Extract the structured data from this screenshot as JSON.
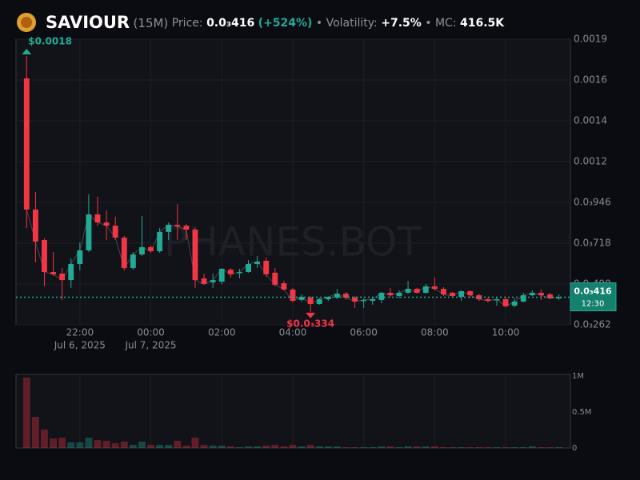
{
  "header": {
    "name": "SAVIOUR",
    "interval": "(15M)",
    "price_label": "Price:",
    "price": "0.0₃416",
    "change": "(+524%)",
    "volatility_label": "• Volatility:",
    "volatility": "+7.5%",
    "mc_label": "• MC:",
    "mc": "416.5K"
  },
  "chart_data": {
    "type": "candlestick",
    "watermark": "PHANES.BOT",
    "up_color": "#22ab94",
    "down_color": "#f23645",
    "open": [
      0.001639,
      0.000906,
      0.000736,
      0.000557,
      0.000548,
      0.000512,
      0.000602,
      0.000678,
      0.000879,
      0.000834,
      0.000816,
      0.000749,
      0.000579,
      0.000655,
      0.000696,
      0.000673,
      0.000781,
      0.000821,
      0.000816,
      0.000794,
      0.000521,
      0.000499,
      0.000503,
      0.00057,
      0.000553,
      0.000557,
      0.000602,
      0.00062,
      0.000553,
      0.000494,
      0.000459,
      0.000401,
      0.000414,
      0.000378,
      0.000405,
      0.000414,
      0.000436,
      0.000414,
      0.000396,
      0.000396,
      0.000401,
      0.000441,
      0.000423,
      0.000441,
      0.000463,
      0.000441,
      0.000477,
      0.000463,
      0.000441,
      0.000418,
      0.00045,
      0.000427,
      0.000405,
      0.000401,
      0.000405,
      0.000369,
      0.000392,
      0.000427,
      0.000441,
      0.000432,
      0.000414
    ],
    "high": [
      0.001764,
      0.001004,
      0.000745,
      0.000669,
      0.000579,
      0.000633,
      0.000722,
      0.000991,
      0.000977,
      0.000901,
      0.000866,
      0.000758,
      0.000669,
      0.00087,
      0.000705,
      0.000803,
      0.000834,
      0.000937,
      0.000825,
      0.000803,
      0.000548,
      0.000548,
      0.000579,
      0.000579,
      0.000575,
      0.000624,
      0.000646,
      0.000638,
      0.000579,
      0.000508,
      0.000468,
      0.000432,
      0.000423,
      0.000414,
      0.000418,
      0.000463,
      0.000445,
      0.000423,
      0.00041,
      0.000414,
      0.000445,
      0.000468,
      0.000454,
      0.000508,
      0.000468,
      0.00049,
      0.000526,
      0.000472,
      0.000445,
      0.000454,
      0.000454,
      0.000436,
      0.000414,
      0.000418,
      0.000418,
      0.00041,
      0.000441,
      0.000454,
      0.000459,
      0.000441,
      0.000432
    ],
    "low": [
      0.000803,
      0.000611,
      0.000477,
      0.000535,
      0.000401,
      0.000468,
      0.000566,
      0.000669,
      0.000816,
      0.000736,
      0.000736,
      0.000566,
      0.00057,
      0.000646,
      0.000664,
      0.000664,
      0.000736,
      0.000736,
      0.000736,
      0.000468,
      0.000486,
      0.000468,
      0.00049,
      0.000526,
      0.000521,
      0.000553,
      0.000579,
      0.00053,
      0.000477,
      0.000454,
      0.000387,
      0.000392,
      0.000334,
      0.000374,
      0.000396,
      0.000405,
      0.000401,
      0.000356,
      0.000356,
      0.000374,
      0.000383,
      0.000418,
      0.00041,
      0.000436,
      0.000436,
      0.000436,
      0.000454,
      0.000423,
      0.000414,
      0.000396,
      0.000414,
      0.000396,
      0.000387,
      0.000369,
      0.00036,
      0.00036,
      0.000387,
      0.000423,
      0.000401,
      0.000405,
      0.000401
    ],
    "close": [
      0.000906,
      0.000727,
      0.000557,
      0.000544,
      0.000512,
      0.000602,
      0.000678,
      0.000879,
      0.000834,
      0.000816,
      0.000749,
      0.000579,
      0.000655,
      0.000696,
      0.000673,
      0.000781,
      0.000821,
      0.000812,
      0.000794,
      0.000512,
      0.00049,
      0.000512,
      0.000575,
      0.000544,
      0.000557,
      0.000602,
      0.000615,
      0.000544,
      0.000486,
      0.000459,
      0.000396,
      0.000418,
      0.000378,
      0.000405,
      0.000418,
      0.000436,
      0.000414,
      0.000392,
      0.000401,
      0.000405,
      0.000441,
      0.000427,
      0.000441,
      0.000463,
      0.000441,
      0.000477,
      0.000463,
      0.000432,
      0.000423,
      0.00045,
      0.000427,
      0.000405,
      0.000396,
      0.000405,
      0.000365,
      0.000392,
      0.000427,
      0.000441,
      0.000427,
      0.00041,
      0.000416
    ],
    "xlim": [
      -1.2,
      61.3
    ],
    "xticks": [
      {
        "value": 6,
        "label": "22:00"
      },
      {
        "value": 14,
        "label": "00:00"
      },
      {
        "value": 22,
        "label": "02:00"
      },
      {
        "value": 30,
        "label": "04:00"
      },
      {
        "value": 38,
        "label": "06:00"
      },
      {
        "value": 46,
        "label": "08:00"
      },
      {
        "value": 54,
        "label": "10:00"
      }
    ],
    "date_labels": [
      {
        "value": 6,
        "label": "Jul 6, 2025"
      },
      {
        "value": 14,
        "label": "Jul 7, 2025"
      }
    ],
    "ylim": [
      0.000262,
      0.001858
    ],
    "yticks": [
      {
        "value": 0.000262,
        "label": "0.0₃262"
      },
      {
        "value": 0.00049,
        "label": "0.0₃490"
      },
      {
        "value": 0.000718,
        "label": "0.0₃718"
      },
      {
        "value": 0.000946,
        "label": "0.0₃946"
      },
      {
        "value": 0.001174,
        "label": "0.0012"
      },
      {
        "value": 0.001402,
        "label": "0.0014"
      },
      {
        "value": 0.00163,
        "label": "0.0016"
      },
      {
        "value": 0.001858,
        "label": "0.0019"
      }
    ],
    "grid": true,
    "high_label": {
      "value": 0.001764,
      "label": "$0.0018"
    },
    "low_label": {
      "value": 0.000334,
      "label": "$0.0₃334"
    },
    "current_price": {
      "value": 0.000416,
      "label": "0.0₃416",
      "time": "12:30"
    },
    "volume": {
      "values": [
        978000,
        433000,
        256000,
        133000,
        144000,
        78000,
        78000,
        144000,
        111000,
        100000,
        67000,
        89000,
        44000,
        89000,
        44000,
        44000,
        44000,
        100000,
        33000,
        144000,
        44000,
        33000,
        33000,
        22000,
        11000,
        22000,
        22000,
        33000,
        44000,
        22000,
        44000,
        22000,
        44000,
        22000,
        22000,
        22000,
        11000,
        11000,
        11000,
        11000,
        22000,
        22000,
        11000,
        22000,
        22000,
        22000,
        22000,
        11000,
        11000,
        11000,
        11000,
        11000,
        11000,
        11000,
        11000,
        11000,
        11000,
        22000,
        11000,
        11000,
        11000
      ],
      "ylim": [
        0,
        1022000
      ],
      "yticks": [
        0,
        {
          "value": 500000,
          "label": "0.5M"
        },
        {
          "value": 1000000,
          "label": "1M"
        }
      ]
    }
  }
}
